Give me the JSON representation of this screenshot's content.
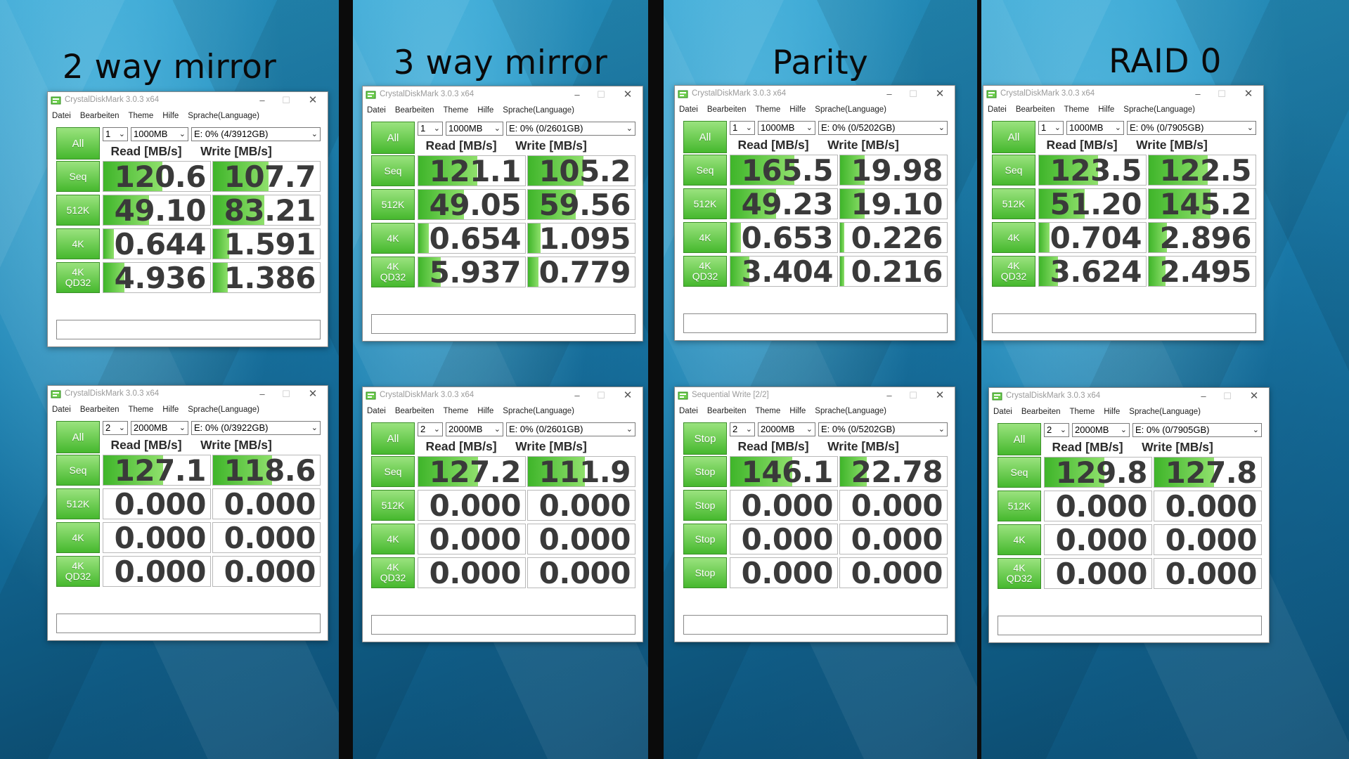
{
  "columns": [
    {
      "title": "2 way mirror",
      "windows": [
        {
          "app_title": "CrystalDiskMark 3.0.3 x64",
          "menu": [
            "Datei",
            "Bearbeiten",
            "Theme",
            "Hilfe",
            "Sprache(Language)"
          ],
          "all_label": "All",
          "count": "1",
          "size": "1000MB",
          "drive": "E: 0% (4/3912GB)",
          "read_header": "Read [MB/s]",
          "write_header": "Write [MB/s]",
          "rows": [
            {
              "label": "Seq",
              "read": "120.6",
              "write": "107.7",
              "read_fill": 0.55,
              "write_fill": 0.52
            },
            {
              "label": "512K",
              "read": "49.10",
              "write": "83.21",
              "read_fill": 0.43,
              "write_fill": 0.48
            },
            {
              "label": "4K",
              "read": "0.644",
              "write": "1.591",
              "read_fill": 0.1,
              "write_fill": 0.15
            },
            {
              "label": "4K\nQD32",
              "read": "4.936",
              "write": "1.386",
              "read_fill": 0.2,
              "write_fill": 0.14
            }
          ]
        },
        {
          "app_title": "CrystalDiskMark 3.0.3 x64",
          "menu": [
            "Datei",
            "Bearbeiten",
            "Theme",
            "Hilfe",
            "Sprache(Language)"
          ],
          "all_label": "All",
          "count": "2",
          "size": "2000MB",
          "drive": "E: 0% (0/3922GB)",
          "read_header": "Read [MB/s]",
          "write_header": "Write [MB/s]",
          "rows": [
            {
              "label": "Seq",
              "read": "127.1",
              "write": "118.6",
              "read_fill": 0.56,
              "write_fill": 0.55
            },
            {
              "label": "512K",
              "read": "0.000",
              "write": "0.000",
              "read_fill": 0,
              "write_fill": 0
            },
            {
              "label": "4K",
              "read": "0.000",
              "write": "0.000",
              "read_fill": 0,
              "write_fill": 0
            },
            {
              "label": "4K\nQD32",
              "read": "0.000",
              "write": "0.000",
              "read_fill": 0,
              "write_fill": 0
            }
          ]
        }
      ]
    },
    {
      "title": "3 way mirror",
      "windows": [
        {
          "app_title": "CrystalDiskMark 3.0.3 x64",
          "menu": [
            "Datei",
            "Bearbeiten",
            "Theme",
            "Hilfe",
            "Sprache(Language)"
          ],
          "all_label": "All",
          "count": "1",
          "size": "1000MB",
          "drive": "E: 0% (0/2601GB)",
          "read_header": "Read [MB/s]",
          "write_header": "Write [MB/s]",
          "rows": [
            {
              "label": "Seq",
              "read": "121.1",
              "write": "105.2",
              "read_fill": 0.55,
              "write_fill": 0.52
            },
            {
              "label": "512K",
              "read": "49.05",
              "write": "59.56",
              "read_fill": 0.43,
              "write_fill": 0.45
            },
            {
              "label": "4K",
              "read": "0.654",
              "write": "1.095",
              "read_fill": 0.1,
              "write_fill": 0.12
            },
            {
              "label": "4K\nQD32",
              "read": "5.937",
              "write": "0.779",
              "read_fill": 0.21,
              "write_fill": 0.1
            }
          ]
        },
        {
          "app_title": "CrystalDiskMark 3.0.3 x64",
          "menu": [
            "Datei",
            "Bearbeiten",
            "Theme",
            "Hilfe",
            "Sprache(Language)"
          ],
          "all_label": "All",
          "count": "2",
          "size": "2000MB",
          "drive": "E: 0% (0/2601GB)",
          "read_header": "Read [MB/s]",
          "write_header": "Write [MB/s]",
          "rows": [
            {
              "label": "Seq",
              "read": "127.2",
              "write": "111.9",
              "read_fill": 0.56,
              "write_fill": 0.53
            },
            {
              "label": "512K",
              "read": "0.000",
              "write": "0.000",
              "read_fill": 0,
              "write_fill": 0
            },
            {
              "label": "4K",
              "read": "0.000",
              "write": "0.000",
              "read_fill": 0,
              "write_fill": 0
            },
            {
              "label": "4K\nQD32",
              "read": "0.000",
              "write": "0.000",
              "read_fill": 0,
              "write_fill": 0
            }
          ]
        }
      ]
    },
    {
      "title": "Parity",
      "windows": [
        {
          "app_title": "CrystalDiskMark 3.0.3 x64",
          "menu": [
            "Datei",
            "Bearbeiten",
            "Theme",
            "Hilfe",
            "Sprache(Language)"
          ],
          "all_label": "All",
          "count": "1",
          "size": "1000MB",
          "drive": "E: 0% (0/5202GB)",
          "read_header": "Read [MB/s]",
          "write_header": "Write [MB/s]",
          "rows": [
            {
              "label": "Seq",
              "read": "165.5",
              "write": "19.98",
              "read_fill": 0.6,
              "write_fill": 0.23
            },
            {
              "label": "512K",
              "read": "49.23",
              "write": "19.10",
              "read_fill": 0.43,
              "write_fill": 0.23
            },
            {
              "label": "4K",
              "read": "0.653",
              "write": "0.226",
              "read_fill": 0.1,
              "write_fill": 0.04
            },
            {
              "label": "4K\nQD32",
              "read": "3.404",
              "write": "0.216",
              "read_fill": 0.18,
              "write_fill": 0.04
            }
          ]
        },
        {
          "app_title": "Sequential Write [2/2]",
          "menu": [
            "Datei",
            "Bearbeiten",
            "Theme",
            "Hilfe",
            "Sprache(Language)"
          ],
          "all_label": "Stop",
          "count": "2",
          "size": "2000MB",
          "drive": "E: 0% (0/5202GB)",
          "read_header": "Read [MB/s]",
          "write_header": "Write [MB/s]",
          "rows": [
            {
              "label": "Stop",
              "read": "146.1",
              "write": "22.78",
              "read_fill": 0.58,
              "write_fill": 0.25
            },
            {
              "label": "Stop",
              "read": "0.000",
              "write": "0.000",
              "read_fill": 0,
              "write_fill": 0
            },
            {
              "label": "Stop",
              "read": "0.000",
              "write": "0.000",
              "read_fill": 0,
              "write_fill": 0
            },
            {
              "label": "Stop",
              "read": "0.000",
              "write": "0.000",
              "read_fill": 0,
              "write_fill": 0
            }
          ]
        }
      ]
    },
    {
      "title": "RAID 0",
      "windows": [
        {
          "app_title": "CrystalDiskMark 3.0.3 x64",
          "menu": [
            "Datei",
            "Bearbeiten",
            "Theme",
            "Hilfe",
            "Sprache(Language)"
          ],
          "all_label": "All",
          "count": "1",
          "size": "1000MB",
          "drive": "E: 0% (0/7905GB)",
          "read_header": "Read [MB/s]",
          "write_header": "Write [MB/s]",
          "rows": [
            {
              "label": "Seq",
              "read": "123.5",
              "write": "122.5",
              "read_fill": 0.55,
              "write_fill": 0.55
            },
            {
              "label": "512K",
              "read": "51.20",
              "write": "145.2",
              "read_fill": 0.43,
              "write_fill": 0.58
            },
            {
              "label": "4K",
              "read": "0.704",
              "write": "2.896",
              "read_fill": 0.1,
              "write_fill": 0.17
            },
            {
              "label": "4K\nQD32",
              "read": "3.624",
              "write": "2.495",
              "read_fill": 0.18,
              "write_fill": 0.16
            }
          ]
        },
        {
          "app_title": "CrystalDiskMark 3.0.3 x64",
          "menu": [
            "Datei",
            "Bearbeiten",
            "Theme",
            "Hilfe",
            "Sprache(Language)"
          ],
          "all_label": "All",
          "count": "2",
          "size": "2000MB",
          "drive": "E: 0% (0/7905GB)",
          "read_header": "Read [MB/s]",
          "write_header": "Write [MB/s]",
          "rows": [
            {
              "label": "Seq",
              "read": "129.8",
              "write": "127.8",
              "read_fill": 0.56,
              "write_fill": 0.56
            },
            {
              "label": "512K",
              "read": "0.000",
              "write": "0.000",
              "read_fill": 0,
              "write_fill": 0
            },
            {
              "label": "4K",
              "read": "0.000",
              "write": "0.000",
              "read_fill": 0,
              "write_fill": 0
            },
            {
              "label": "4K\nQD32",
              "read": "0.000",
              "write": "0.000",
              "read_fill": 0,
              "write_fill": 0
            }
          ]
        }
      ]
    }
  ],
  "colors": {
    "button_green_top": "#9ae37e",
    "button_green_bottom": "#46b82e",
    "bar_green": "#3fb52a",
    "value_text": "#3a3a3a",
    "background_blue": "#1a7fb0",
    "separator": "#0b0b0b"
  },
  "icons": {
    "app": "crystaldiskmark-app-icon",
    "minimize": "minimize-icon",
    "maximize": "maximize-icon",
    "close": "close-icon",
    "dropdown": "chevron-down-icon"
  }
}
